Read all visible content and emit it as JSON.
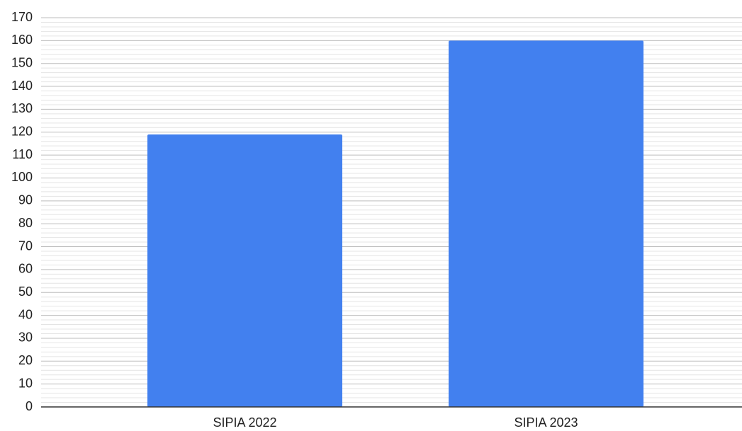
{
  "chart_data": {
    "type": "bar",
    "categories": [
      "SIPIA 2022",
      "SIPIA 2023"
    ],
    "values": [
      119,
      160
    ],
    "color": "#4280ef",
    "ylim": [
      0,
      170
    ],
    "yticks": [
      0,
      10,
      20,
      30,
      40,
      50,
      60,
      70,
      80,
      90,
      100,
      110,
      120,
      130,
      140,
      150,
      160,
      170
    ],
    "grid": true
  }
}
